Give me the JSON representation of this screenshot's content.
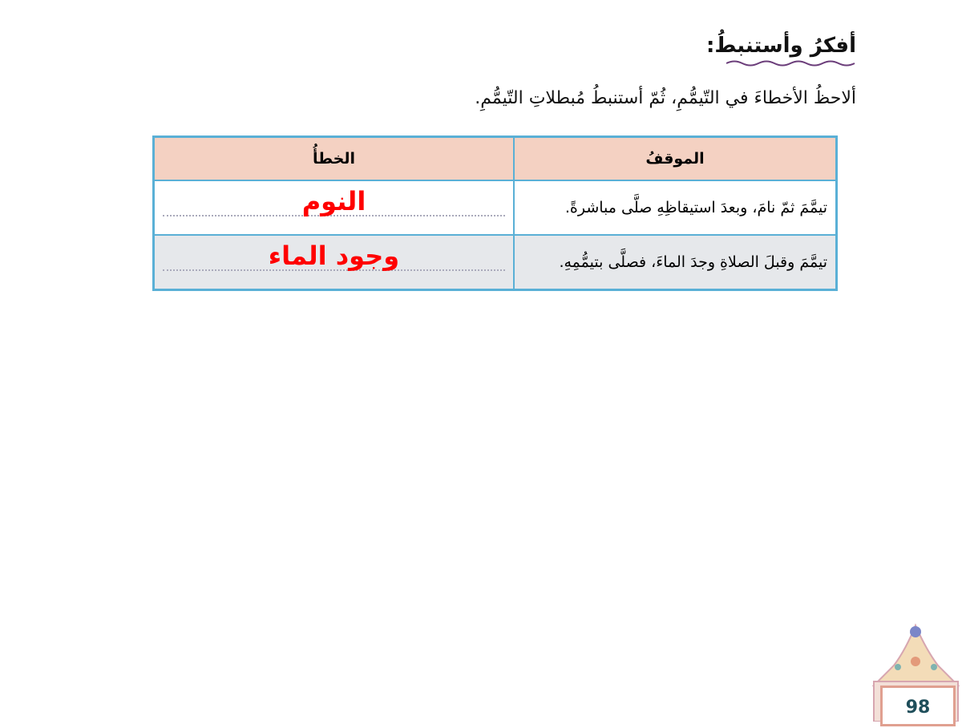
{
  "heading": "أفكرُ وأستنبطُ:",
  "instruction": "ألاحظُ الأخطاءَ في التّيمُّمِ، ثُمّ أستنبطُ مُبطلاتِ التّيمُّمِ.",
  "table": {
    "headers": [
      "الموقفُ",
      "الخطأُ"
    ],
    "rows": [
      {
        "situation": "تيمَّمَ ثمّ نامَ، وبعدَ استيقاظِهِ صلَّى مباشرةً.",
        "answer": "النوم"
      },
      {
        "situation": "تيمَّمَ وقبلَ الصلاةِ وجدَ الماءَ، فصلَّى بتيمُّمِهِ.",
        "answer": "وجود الماء"
      }
    ]
  },
  "page_number": "98",
  "colors": {
    "border": "#5ab0d6",
    "header_bg": "#f4d1c2",
    "answer": "#ff0000",
    "page_number": "#1e4e5a"
  }
}
